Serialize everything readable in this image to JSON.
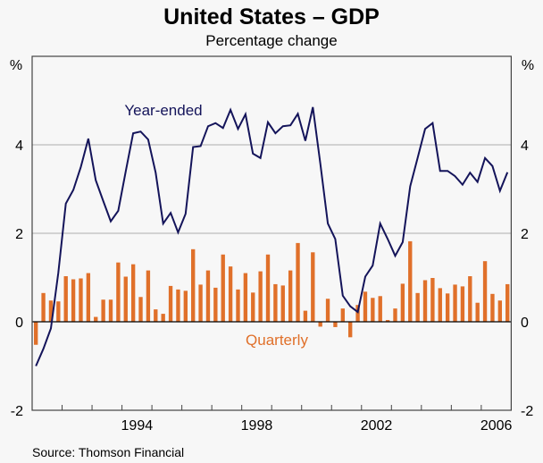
{
  "chart_data": {
    "type": "bar+line",
    "title": "United States – GDP",
    "subtitle": "Percentage change",
    "ylabel_left": "%",
    "ylabel_right": "%",
    "ylim": [
      -2,
      6
    ],
    "yticks": [
      -2,
      0,
      2,
      4
    ],
    "ytick_labels": [
      "-2",
      "0",
      "2",
      "4"
    ],
    "xlim": [
      1991,
      2007
    ],
    "xtick_labels": [
      {
        "label": "1994",
        "year": 1994
      },
      {
        "label": "1998",
        "year": 1998
      },
      {
        "label": "2002",
        "year": 2002
      },
      {
        "label": "2006",
        "year": 2006
      }
    ],
    "grid": true,
    "start_quarter": "1991Q1",
    "series": [
      {
        "name": "Year-ended",
        "type": "line",
        "color": "#14145a",
        "label": "Year-ended",
        "values": [
          -1.0,
          -0.61,
          -0.15,
          1.11,
          2.67,
          2.98,
          3.5,
          4.14,
          3.2,
          2.73,
          2.27,
          2.51,
          3.4,
          4.26,
          4.3,
          4.12,
          3.37,
          2.22,
          2.46,
          2.02,
          2.44,
          3.95,
          3.97,
          4.42,
          4.49,
          4.38,
          4.79,
          4.36,
          4.69,
          3.8,
          3.7,
          4.51,
          4.26,
          4.42,
          4.44,
          4.7,
          4.09,
          4.85,
          3.57,
          2.22,
          1.87,
          0.59,
          0.35,
          0.22,
          1.02,
          1.27,
          2.22,
          1.87,
          1.49,
          1.8,
          3.06,
          3.7,
          4.36,
          4.49,
          3.41,
          3.41,
          3.29,
          3.1,
          3.37,
          3.16,
          3.7,
          3.52,
          2.96,
          3.38
        ]
      },
      {
        "name": "Quarterly",
        "type": "bar",
        "color": "#e0702a",
        "label": "Quarterly",
        "values": [
          -0.52,
          0.65,
          0.48,
          0.46,
          1.03,
          0.96,
          0.98,
          1.1,
          0.11,
          0.5,
          0.5,
          1.34,
          1.02,
          1.3,
          0.56,
          1.16,
          0.28,
          0.18,
          0.81,
          0.73,
          0.7,
          1.64,
          0.84,
          1.16,
          0.77,
          1.52,
          1.25,
          0.73,
          1.1,
          0.66,
          1.14,
          1.52,
          0.85,
          0.82,
          1.16,
          1.78,
          0.25,
          1.57,
          -0.11,
          0.52,
          -0.12,
          0.3,
          -0.35,
          0.38,
          0.68,
          0.54,
          0.58,
          0.04,
          0.3,
          0.86,
          1.82,
          0.65,
          0.94,
          0.99,
          0.76,
          0.64,
          0.84,
          0.8,
          1.03,
          0.43,
          1.37,
          0.63,
          0.48,
          0.85
        ]
      }
    ],
    "source": "Source: Thomson Financial"
  }
}
